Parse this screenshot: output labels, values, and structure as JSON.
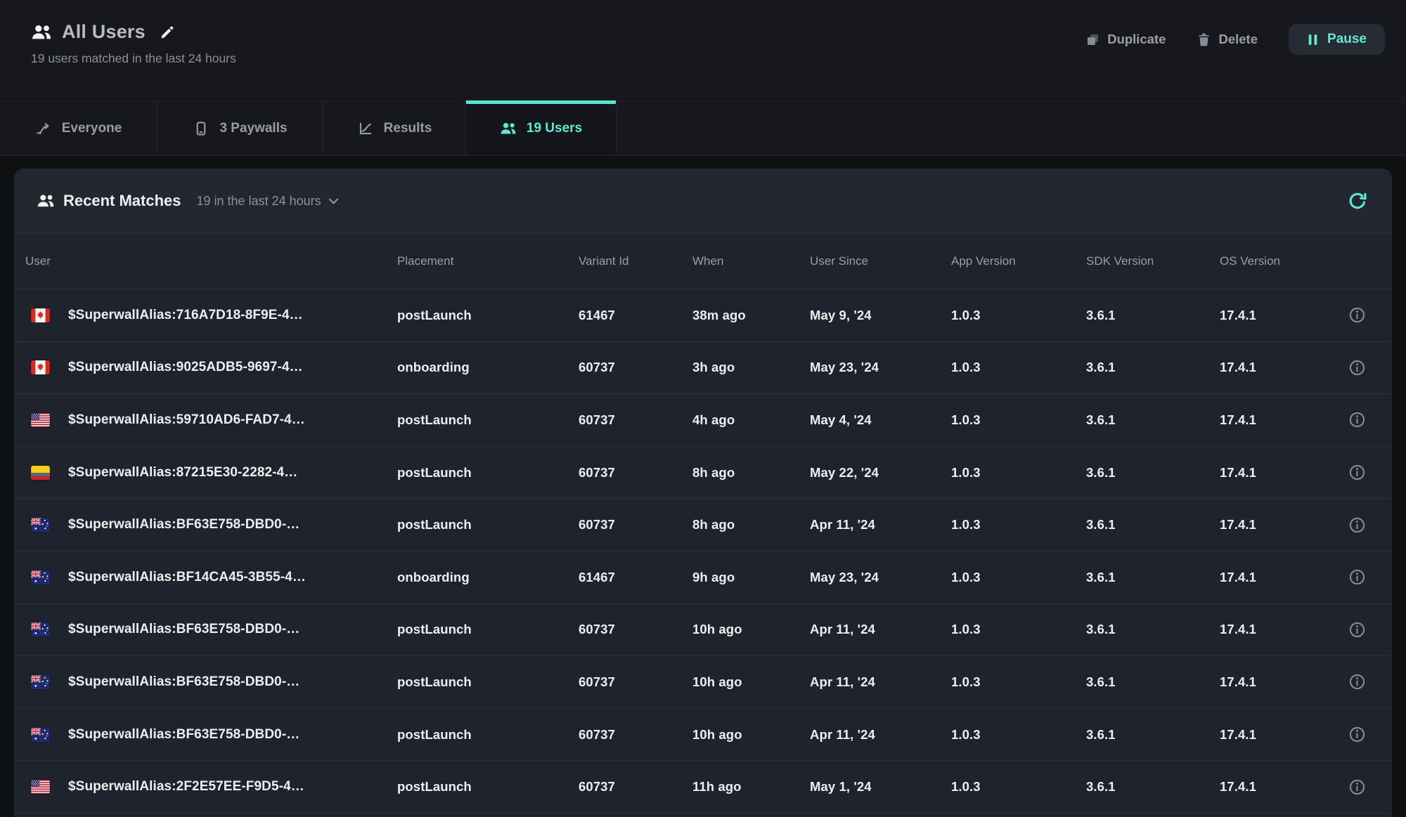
{
  "header": {
    "title": "All Users",
    "subtitle": "19 users matched in the last 24 hours",
    "actions": {
      "duplicate": "Duplicate",
      "delete": "Delete",
      "pause": "Pause"
    }
  },
  "tabs": [
    {
      "label": "Everyone",
      "icon": "split-arrow-icon",
      "active": false
    },
    {
      "label": "3 Paywalls",
      "icon": "phone-icon",
      "active": false
    },
    {
      "label": "Results",
      "icon": "chart-icon",
      "active": false
    },
    {
      "label": "19 Users",
      "icon": "users-icon",
      "active": true
    }
  ],
  "panel": {
    "title": "Recent Matches",
    "filter": "19 in the last 24 hours"
  },
  "table": {
    "columns": [
      "User",
      "Placement",
      "Variant Id",
      "When",
      "User Since",
      "App Version",
      "SDK Version",
      "OS Version"
    ],
    "rows": [
      {
        "flag": "ca",
        "user": "$SuperwallAlias:716A7D18-8F9E-4…",
        "placement": "postLaunch",
        "variant": "61467",
        "when": "38m ago",
        "since": "May 9, '24",
        "app": "1.0.3",
        "sdk": "3.6.1",
        "os": "17.4.1"
      },
      {
        "flag": "ca",
        "user": "$SuperwallAlias:9025ADB5-9697-4…",
        "placement": "onboarding",
        "variant": "60737",
        "when": "3h ago",
        "since": "May 23, '24",
        "app": "1.0.3",
        "sdk": "3.6.1",
        "os": "17.4.1"
      },
      {
        "flag": "us",
        "user": "$SuperwallAlias:59710AD6-FAD7-4…",
        "placement": "postLaunch",
        "variant": "60737",
        "when": "4h ago",
        "since": "May 4, '24",
        "app": "1.0.3",
        "sdk": "3.6.1",
        "os": "17.4.1"
      },
      {
        "flag": "co",
        "user": "$SuperwallAlias:87215E30-2282-4…",
        "placement": "postLaunch",
        "variant": "60737",
        "when": "8h ago",
        "since": "May 22, '24",
        "app": "1.0.3",
        "sdk": "3.6.1",
        "os": "17.4.1"
      },
      {
        "flag": "au",
        "user": "$SuperwallAlias:BF63E758-DBD0-…",
        "placement": "postLaunch",
        "variant": "60737",
        "when": "8h ago",
        "since": "Apr 11, '24",
        "app": "1.0.3",
        "sdk": "3.6.1",
        "os": "17.4.1"
      },
      {
        "flag": "au",
        "user": "$SuperwallAlias:BF14CA45-3B55-4…",
        "placement": "onboarding",
        "variant": "61467",
        "when": "9h ago",
        "since": "May 23, '24",
        "app": "1.0.3",
        "sdk": "3.6.1",
        "os": "17.4.1"
      },
      {
        "flag": "au",
        "user": "$SuperwallAlias:BF63E758-DBD0-…",
        "placement": "postLaunch",
        "variant": "60737",
        "when": "10h ago",
        "since": "Apr 11, '24",
        "app": "1.0.3",
        "sdk": "3.6.1",
        "os": "17.4.1"
      },
      {
        "flag": "au",
        "user": "$SuperwallAlias:BF63E758-DBD0-…",
        "placement": "postLaunch",
        "variant": "60737",
        "when": "10h ago",
        "since": "Apr 11, '24",
        "app": "1.0.3",
        "sdk": "3.6.1",
        "os": "17.4.1"
      },
      {
        "flag": "au",
        "user": "$SuperwallAlias:BF63E758-DBD0-…",
        "placement": "postLaunch",
        "variant": "60737",
        "when": "10h ago",
        "since": "Apr 11, '24",
        "app": "1.0.3",
        "sdk": "3.6.1",
        "os": "17.4.1"
      },
      {
        "flag": "us",
        "user": "$SuperwallAlias:2F2E57EE-F9D5-4…",
        "placement": "postLaunch",
        "variant": "60737",
        "when": "11h ago",
        "since": "May 1, '24",
        "app": "1.0.3",
        "sdk": "3.6.1",
        "os": "17.4.1"
      }
    ]
  },
  "colors": {
    "accent": "#56e7d2",
    "panel_bg": "#1f232c",
    "page_bg": "#0e1013",
    "header_bg": "#16181d"
  }
}
